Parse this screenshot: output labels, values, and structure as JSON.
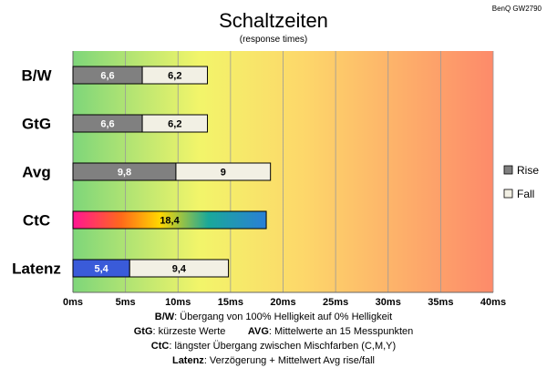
{
  "header": {
    "title": "Schaltzeiten",
    "subtitle": "(response times)",
    "model": "BenQ GW2790"
  },
  "chart_data": {
    "type": "bar",
    "orientation": "horizontal",
    "stacked": true,
    "categories": [
      "B/W",
      "GtG",
      "Avg",
      "CtC",
      "Latenz"
    ],
    "series": [
      {
        "name": "Rise",
        "values": [
          6.6,
          6.6,
          9.8,
          null,
          5.4
        ]
      },
      {
        "name": "Fall",
        "values": [
          6.2,
          6.2,
          9,
          null,
          9.4
        ]
      }
    ],
    "single_values": {
      "CtC": 18.4
    },
    "x_ticks": [
      "0ms",
      "5ms",
      "10ms",
      "15ms",
      "20ms",
      "25ms",
      "30ms",
      "35ms",
      "40ms"
    ],
    "xlim": [
      0,
      40
    ],
    "grid": true,
    "legend_position": "right",
    "colors": {
      "rise": "#808080",
      "fall": "#f2f0e4",
      "latenz_rise": "#3a5bd9",
      "background_gradient": [
        "#7ed67a",
        "#f2f56a",
        "#fdd76a",
        "#fd8a6a"
      ]
    }
  },
  "footer": {
    "line1": {
      "key": "B/W",
      "text": ":  Übergang von 100% Helligkeit auf 0% Helligkeit"
    },
    "line2a": {
      "key": "GtG",
      "text": ": kürzeste  Werte"
    },
    "line2b": {
      "key": "AVG",
      "text": ": Mittelwerte  an 15 Messpunkten"
    },
    "line3": {
      "key": "CtC",
      "text": ": längster Übergang  zwischen Mischfarben  (C,M,Y)"
    },
    "line4": {
      "key": "Latenz",
      "text": ": Verzögerung  + Mittelwert Avg rise/fall"
    }
  }
}
